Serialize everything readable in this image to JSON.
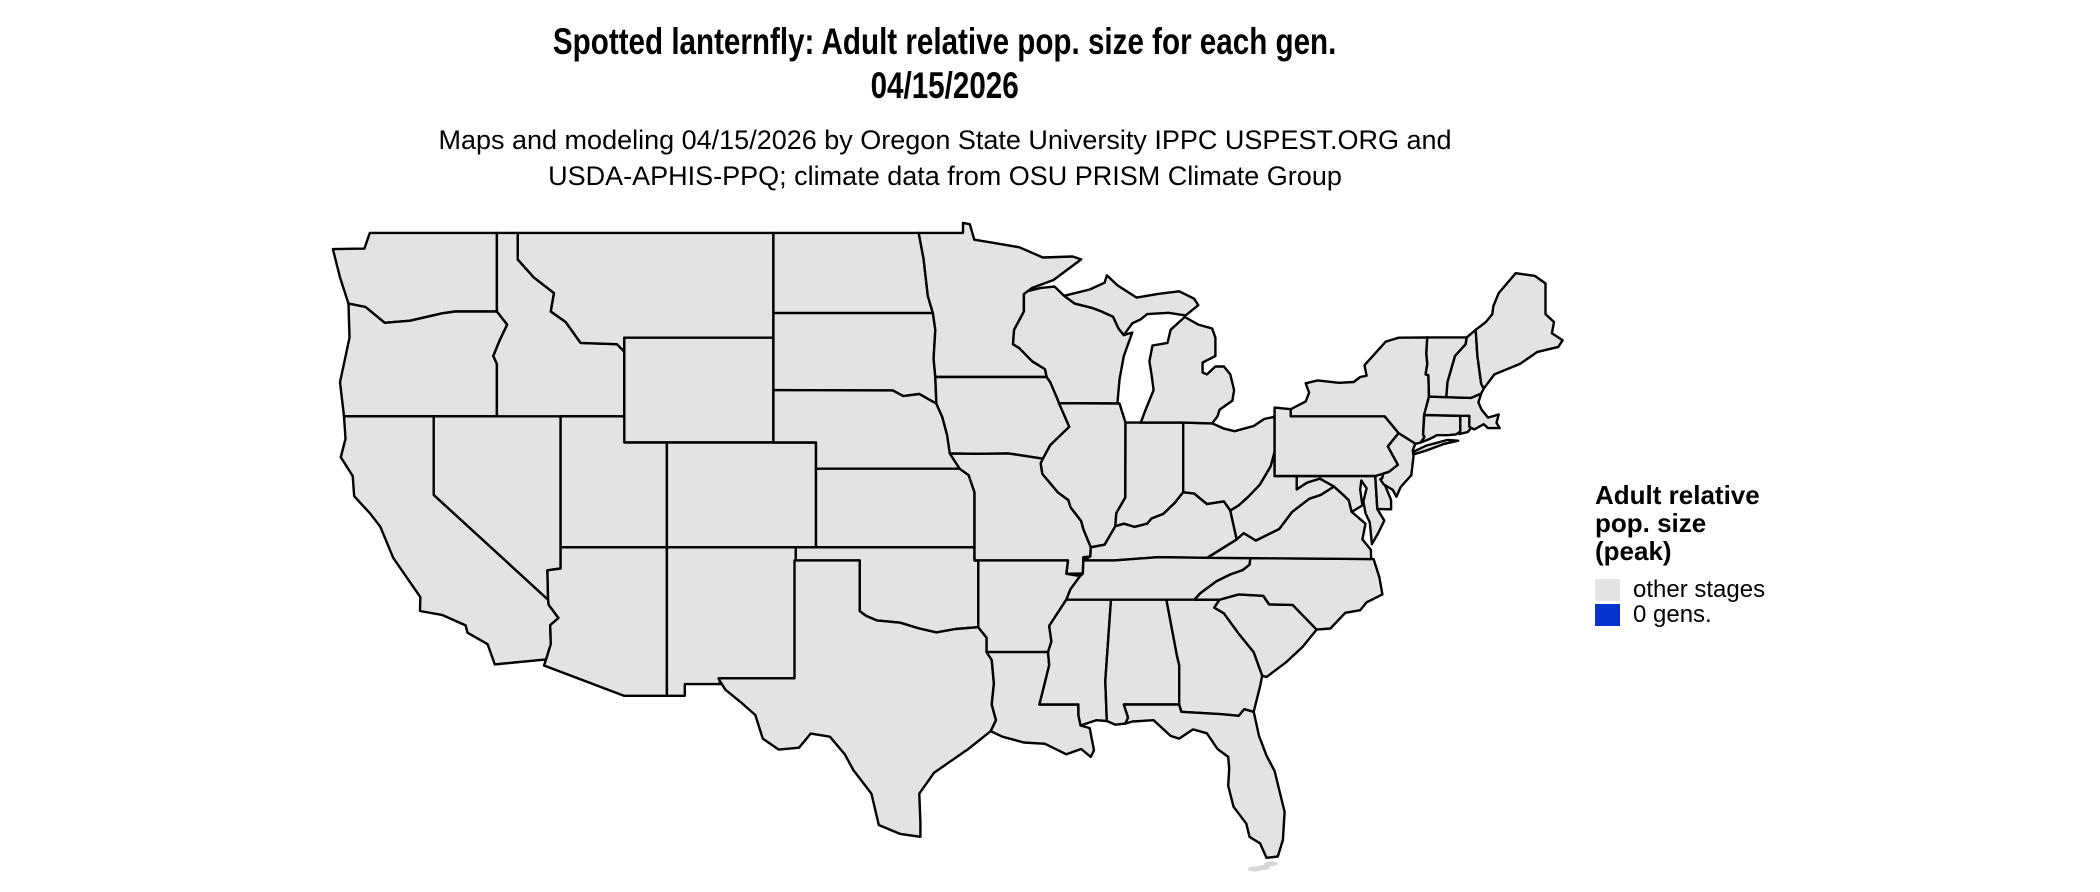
{
  "header": {
    "title_line1": "Spotted lanternfly: Adult relative pop. size for each gen.",
    "title_line2": "04/15/2026",
    "subtitle_line1": "Maps and modeling 04/15/2026 by Oregon State University IPPC USPEST.ORG and",
    "subtitle_line2": "USDA-APHIS-PPQ; climate data from OSU PRISM Climate Group"
  },
  "legend": {
    "title": "Adult relative pop. size (peak)",
    "title_lines": [
      "Adult relative",
      "pop. size",
      "(peak)"
    ],
    "items": [
      {
        "label": "other stages",
        "color": "#E3E3E3"
      },
      {
        "label": "0 gens.",
        "color": "#0433CD"
      }
    ]
  },
  "map": {
    "type": "choropleth",
    "region": "Conterminous United States",
    "projection": "equirectangular",
    "state_fill": "#E3E3E3",
    "state_border": "#000000",
    "water_background": "#FFFFFF",
    "keys_fill": "#D8D8D8",
    "displayed_category_for_all_states": "other stages",
    "states_shown": [
      "WA",
      "OR",
      "CA",
      "NV",
      "ID",
      "MT",
      "WY",
      "UT",
      "CO",
      "AZ",
      "NM",
      "ND",
      "SD",
      "NE",
      "KS",
      "OK",
      "TX",
      "MN",
      "IA",
      "MO",
      "AR",
      "LA",
      "WI",
      "IL",
      "IN",
      "OH",
      "MI",
      "KY",
      "TN",
      "MS",
      "AL",
      "GA",
      "FL",
      "SC",
      "NC",
      "VA",
      "WV",
      "MD",
      "DE",
      "PA",
      "NJ",
      "NY",
      "CT",
      "RI",
      "MA",
      "VT",
      "NH",
      "ME"
    ]
  }
}
